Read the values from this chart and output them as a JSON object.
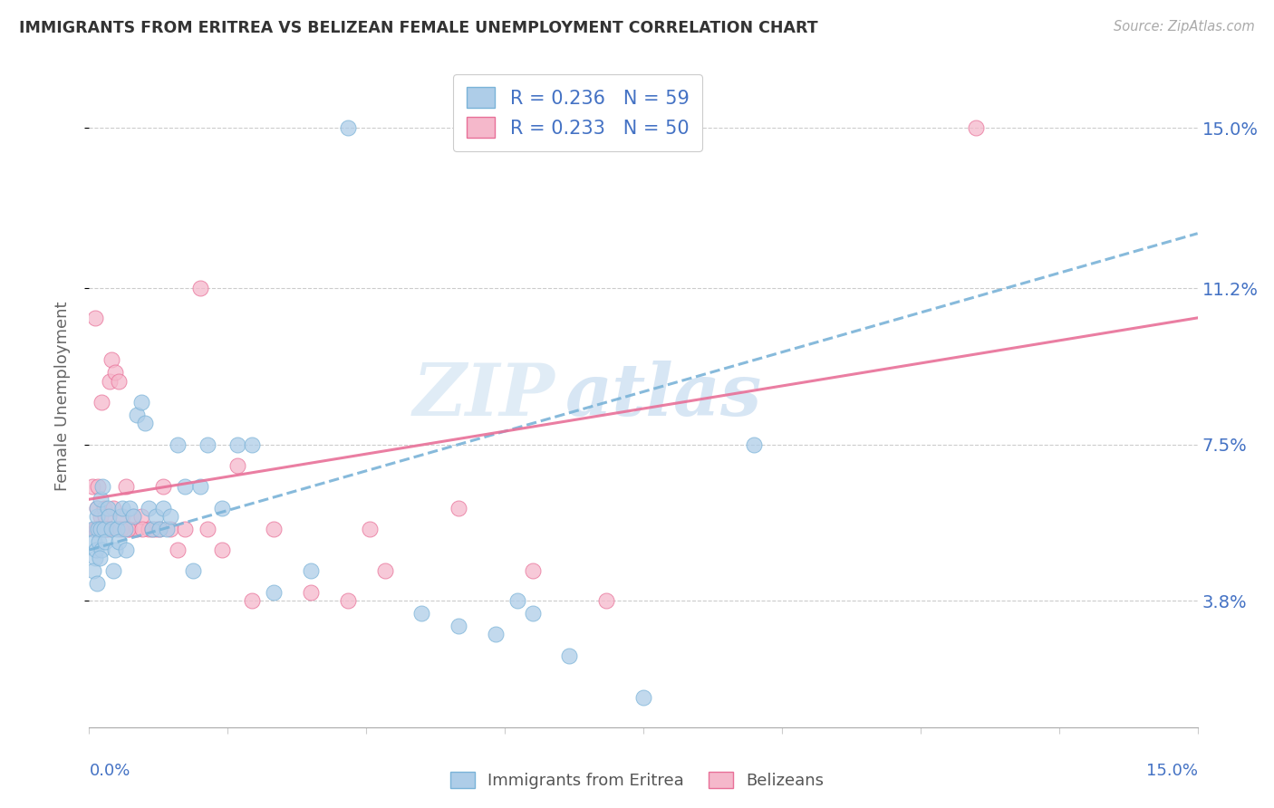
{
  "title": "IMMIGRANTS FROM ERITREA VS BELIZEAN FEMALE UNEMPLOYMENT CORRELATION CHART",
  "source": "Source: ZipAtlas.com",
  "ylabel": "Female Unemployment",
  "ytick_labels": [
    "3.8%",
    "7.5%",
    "11.2%",
    "15.0%"
  ],
  "ytick_values": [
    3.8,
    7.5,
    11.2,
    15.0
  ],
  "xmin": 0.0,
  "xmax": 15.0,
  "ymin": 0.8,
  "ymax": 16.5,
  "color_blue": "#aecde8",
  "color_blue_dark": "#7ab3d8",
  "color_pink": "#f5b8cb",
  "color_pink_dark": "#e87098",
  "color_axis_label": "#4472c4",
  "watermark_zip": "ZIP",
  "watermark_atlas": "atlas",
  "blue_line_start_y": 5.0,
  "blue_line_end_y": 12.5,
  "pink_line_start_y": 6.2,
  "pink_line_end_y": 10.5,
  "blue_scatter_x": [
    0.05,
    0.07,
    0.08,
    0.09,
    0.1,
    0.1,
    0.12,
    0.13,
    0.15,
    0.16,
    0.17,
    0.18,
    0.2,
    0.22,
    0.25,
    0.27,
    0.3,
    0.32,
    0.35,
    0.38,
    0.4,
    0.42,
    0.45,
    0.48,
    0.5,
    0.55,
    0.6,
    0.65,
    0.7,
    0.75,
    0.8,
    0.85,
    0.9,
    0.95,
    1.0,
    1.05,
    1.1,
    1.2,
    1.3,
    1.4,
    1.5,
    1.6,
    1.8,
    2.0,
    2.2,
    2.5,
    3.0,
    3.5,
    4.5,
    5.0,
    5.5,
    5.8,
    6.0,
    6.5,
    7.5,
    9.0,
    0.06,
    0.11,
    0.14
  ],
  "blue_scatter_y": [
    5.5,
    5.2,
    4.8,
    5.0,
    5.8,
    6.0,
    5.5,
    5.2,
    6.2,
    5.5,
    5.0,
    6.5,
    5.5,
    5.2,
    6.0,
    5.8,
    5.5,
    4.5,
    5.0,
    5.5,
    5.2,
    5.8,
    6.0,
    5.5,
    5.0,
    6.0,
    5.8,
    8.2,
    8.5,
    8.0,
    6.0,
    5.5,
    5.8,
    5.5,
    6.0,
    5.5,
    5.8,
    7.5,
    6.5,
    4.5,
    6.5,
    7.5,
    6.0,
    7.5,
    7.5,
    4.0,
    4.5,
    15.0,
    3.5,
    3.2,
    3.0,
    3.8,
    3.5,
    2.5,
    1.5,
    7.5,
    4.5,
    4.2,
    4.8
  ],
  "pink_scatter_x": [
    0.05,
    0.07,
    0.08,
    0.1,
    0.12,
    0.15,
    0.18,
    0.2,
    0.22,
    0.25,
    0.28,
    0.3,
    0.35,
    0.4,
    0.45,
    0.5,
    0.55,
    0.6,
    0.65,
    0.7,
    0.8,
    0.9,
    1.0,
    1.1,
    1.3,
    1.5,
    1.8,
    2.0,
    2.5,
    3.0,
    3.5,
    4.0,
    5.0,
    6.0,
    7.0,
    0.09,
    0.14,
    0.17,
    0.23,
    0.32,
    0.42,
    0.52,
    0.72,
    0.85,
    0.95,
    1.2,
    1.6,
    2.2,
    3.8,
    12.0
  ],
  "pink_scatter_y": [
    6.5,
    5.5,
    10.5,
    6.0,
    6.5,
    5.8,
    5.5,
    6.0,
    5.8,
    5.5,
    9.0,
    9.5,
    9.2,
    9.0,
    5.8,
    6.5,
    5.5,
    5.8,
    5.5,
    5.8,
    5.5,
    5.5,
    6.5,
    5.5,
    5.5,
    11.2,
    5.0,
    7.0,
    5.5,
    4.0,
    3.8,
    4.5,
    6.0,
    4.5,
    3.8,
    5.5,
    5.5,
    8.5,
    5.5,
    6.0,
    5.5,
    5.5,
    5.5,
    5.5,
    5.5,
    5.0,
    5.5,
    3.8,
    5.5,
    15.0
  ]
}
